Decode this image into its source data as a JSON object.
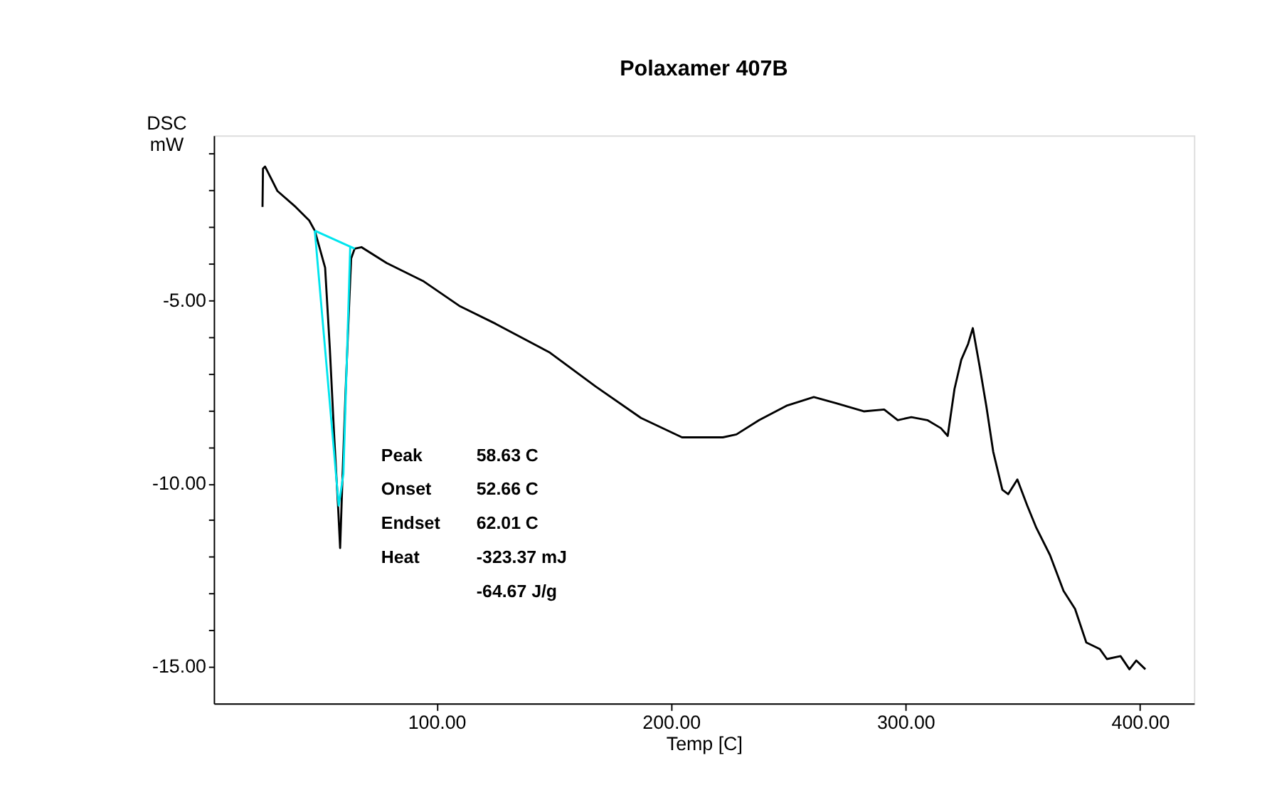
{
  "chart_data": {
    "type": "line",
    "title": "Polaxamer 407B",
    "xlabel": "Temp  [C]",
    "ylabel": "DSC\nmW",
    "xlim": [
      5,
      423
    ],
    "ylim": [
      -16.0,
      -0.5
    ],
    "xticks": [
      {
        "value": 100,
        "label": "100.00"
      },
      {
        "value": 200,
        "label": "200.00"
      },
      {
        "value": 300,
        "label": "300.00"
      },
      {
        "value": 400,
        "label": "400.00"
      }
    ],
    "yticks": [
      {
        "value": -1,
        "label": null
      },
      {
        "value": -2,
        "label": null
      },
      {
        "value": -3,
        "label": null
      },
      {
        "value": -4,
        "label": null
      },
      {
        "value": -5,
        "label": "-5.00"
      },
      {
        "value": -6,
        "label": null
      },
      {
        "value": -7,
        "label": null
      },
      {
        "value": -8,
        "label": null
      },
      {
        "value": -9,
        "label": null
      },
      {
        "value": -10,
        "label": "-10.00"
      },
      {
        "value": -11,
        "label": null
      },
      {
        "value": -12,
        "label": null
      },
      {
        "value": -13,
        "label": null
      },
      {
        "value": -14,
        "label": null
      },
      {
        "value": -15,
        "label": "-15.00"
      }
    ],
    "grid": false,
    "legend": false,
    "marker": "none",
    "line_style": "solid",
    "annotations": [
      "Peak 58.63 C",
      "Onset 52.66 C",
      "Endset 62.01 C",
      "Heat -323.37 mJ",
      "-64.67 J/g"
    ],
    "series": [
      {
        "color": "#000000",
        "x": [
          25.8,
          26.0,
          26.9,
          32.2,
          39.9,
          45.7,
          48.1,
          52.5,
          54.5,
          56.4,
          58.0,
          58.9,
          59.9,
          61.2,
          62.6,
          63.6,
          65.1,
          68.0,
          78.7,
          94.2,
          109.7,
          125.2,
          148.4,
          167.8,
          187.2,
          204.7,
          222.1,
          227.9,
          237.6,
          249.2,
          260.9,
          270.5,
          282.2,
          290.9,
          296.7,
          302.5,
          309.3,
          315.1,
          318.0,
          320.9,
          323.8,
          326.7,
          328.7,
          331.6,
          334.5,
          337.4,
          341.3,
          343.8,
          347.7,
          351.9,
          355.8,
          361.6,
          367.4,
          372.3,
          377.1,
          382.9,
          385.9,
          391.7,
          395.5,
          398.4,
          402.3
        ],
        "values": [
          -2.45,
          -1.41,
          -1.35,
          -2.02,
          -2.45,
          -2.82,
          -3.1,
          -4.11,
          -6.31,
          -8.75,
          -10.6,
          -11.76,
          -9.85,
          -7.54,
          -5.33,
          -3.86,
          -3.59,
          -3.55,
          -3.98,
          -4.47,
          -5.15,
          -5.64,
          -6.43,
          -7.35,
          -8.21,
          -8.74,
          -8.74,
          -8.66,
          -8.27,
          -7.88,
          -7.64,
          -7.81,
          -8.03,
          -7.98,
          -8.27,
          -8.19,
          -8.27,
          -8.49,
          -8.7,
          -7.42,
          -6.62,
          -6.19,
          -5.76,
          -6.8,
          -7.9,
          -9.13,
          -10.17,
          -10.29,
          -9.89,
          -10.6,
          -11.21,
          -11.95,
          -12.93,
          -13.42,
          -14.34,
          -14.52,
          -14.79,
          -14.71,
          -15.07,
          -14.83,
          -15.07
        ]
      },
      {
        "color": "#00e5ee",
        "x": [
          48.1,
          65.1
        ],
        "values": [
          -3.1,
          -3.59
        ]
      },
      {
        "color": "#00e5ee",
        "x": [
          48.1,
          58.3,
          60.3,
          63.2
        ],
        "values": [
          -3.1,
          -10.6,
          -9.74,
          -3.55
        ]
      }
    ]
  }
}
